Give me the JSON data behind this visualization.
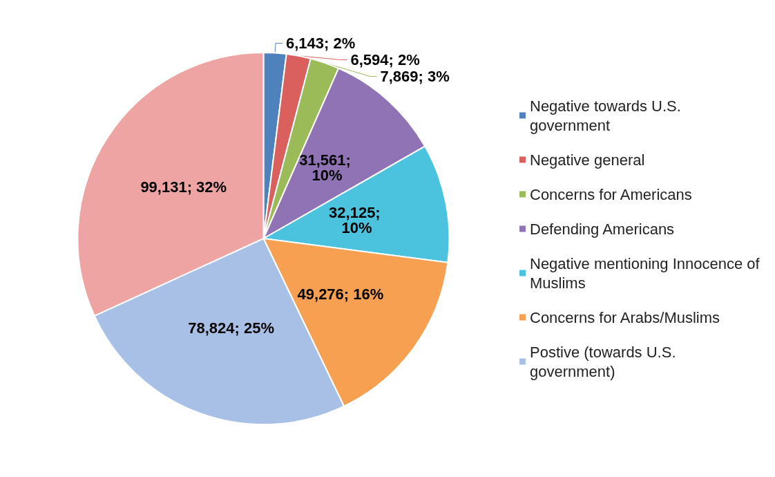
{
  "chart_data": {
    "type": "pie",
    "categories": [
      "Negative towards U.S. government",
      "Negative general",
      "Concerns for Americans",
      "Defending Americans",
      "Negative mentioning Innocence of Muslims",
      "Concerns for Arabs/Muslims",
      "Postive (towards U.S. government)",
      null
    ],
    "values": [
      6143,
      6594,
      7869,
      31561,
      32125,
      49276,
      78824,
      99131
    ],
    "value_labels": [
      "6,143; 2%",
      "6,594; 2%",
      "7,869; 3%",
      "31,561; 10%",
      "32,125; 10%",
      "49,276; 16%",
      "78,824; 25%",
      "99,131; 32%"
    ],
    "colors": [
      "#4f81bd",
      "#d9605c",
      "#9bbb59",
      "#8f73b5",
      "#4bc3de",
      "#f7a052",
      "#a8c0e6",
      "#efa4a4"
    ],
    "legend": "right"
  }
}
